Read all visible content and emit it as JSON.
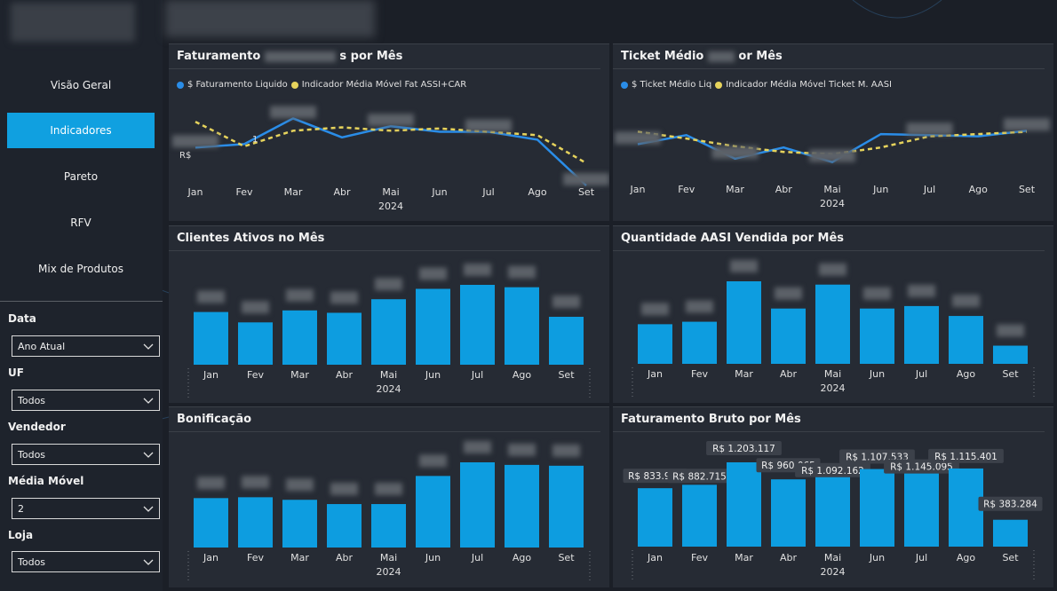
{
  "sidebar": {
    "nav": [
      {
        "label": "Visão Geral",
        "active": false
      },
      {
        "label": "Indicadores",
        "active": true
      },
      {
        "label": "Pareto",
        "active": false
      },
      {
        "label": "RFV",
        "active": false
      },
      {
        "label": "Mix de Produtos",
        "active": false
      }
    ],
    "filters": [
      {
        "label": "Data",
        "value": "Ano Atual"
      },
      {
        "label": "UF",
        "value": "Todos"
      },
      {
        "label": "Vendedor",
        "value": "Todos"
      },
      {
        "label": "Média Móvel",
        "value": "2"
      },
      {
        "label": "Loja",
        "value": "Todos"
      }
    ]
  },
  "colors": {
    "accent": "#10a0e0",
    "bar": "#0d9de0",
    "line_avg": "#e6d35c"
  },
  "months": [
    "Jan",
    "Fev",
    "Mar",
    "Abr",
    "Mai",
    "Jun",
    "Jul",
    "Ago",
    "Set"
  ],
  "year": "2024",
  "panels": {
    "fat_liq": {
      "title_start": "Faturamento",
      "title_end": "s por Mês",
      "legend": [
        "$ Faturamento Liquido",
        "Indicador Média Móvel Fat ASSI+CAR"
      ],
      "blur_label": "R$",
      "frac_label": "1"
    },
    "ticket": {
      "title_start": "Ticket Médio",
      "title_end": "or Mês",
      "legend": [
        "$ Ticket Médio Liq",
        "Indicador Média Móvel Ticket M. AASI"
      ]
    },
    "clientes": {
      "title": "Clientes Ativos no Mês"
    },
    "qtd_aasi": {
      "title": "Quantidade AASI Vendida por Mês"
    },
    "bonif": {
      "title": "Bonificação"
    },
    "fat_bruto": {
      "title": "Faturamento Bruto por Mês"
    }
  },
  "chart_data": [
    {
      "type": "line",
      "categories": [
        "Jan",
        "Fev",
        "Mar",
        "Abr",
        "Mai",
        "Jun",
        "Jul",
        "Ago",
        "Set"
      ],
      "series": [
        {
          "name": "$ Faturamento Liquido",
          "values": [
            0.57,
            0.6,
            0.83,
            0.66,
            0.76,
            0.71,
            0.71,
            0.64,
            0.23
          ]
        },
        {
          "name": "Indicador Média Móvel Fat ASSI+CAR",
          "values": [
            0.8,
            0.58,
            0.72,
            0.75,
            0.72,
            0.74,
            0.71,
            0.68,
            0.43
          ]
        }
      ]
    },
    {
      "type": "line",
      "categories": [
        "Jan",
        "Fev",
        "Mar",
        "Abr",
        "Mai",
        "Jun",
        "Jul",
        "Ago",
        "Set"
      ],
      "series": [
        {
          "name": "$ Ticket Médio Liq",
          "values": [
            0.6,
            0.68,
            0.47,
            0.57,
            0.44,
            0.69,
            0.68,
            0.67,
            0.72
          ]
        },
        {
          "name": "Indicador Média Móvel Ticket M. AASI",
          "values": [
            0.71,
            0.65,
            0.58,
            0.53,
            0.51,
            0.57,
            0.67,
            0.69,
            0.71
          ]
        }
      ]
    },
    {
      "type": "bar",
      "categories": [
        "Jan",
        "Fev",
        "Mar",
        "Abr",
        "Mai",
        "Jun",
        "Jul",
        "Ago",
        "Set"
      ],
      "values": [
        0.66,
        0.53,
        0.68,
        0.65,
        0.82,
        0.95,
        1.0,
        0.97,
        0.6
      ]
    },
    {
      "type": "bar",
      "categories": [
        "Jan",
        "Fev",
        "Mar",
        "Abr",
        "Mai",
        "Jun",
        "Jul",
        "Ago",
        "Set"
      ],
      "values": [
        0.48,
        0.51,
        1.0,
        0.67,
        0.96,
        0.67,
        0.7,
        0.58,
        0.22
      ]
    },
    {
      "type": "bar",
      "categories": [
        "Jan",
        "Fev",
        "Mar",
        "Abr",
        "Mai",
        "Jun",
        "Jul",
        "Ago",
        "Set"
      ],
      "values": [
        0.58,
        0.59,
        0.56,
        0.51,
        0.51,
        0.84,
        1.0,
        0.97,
        0.96
      ]
    },
    {
      "type": "bar",
      "title": "Faturamento Bruto por Mês",
      "categories": [
        "Jan",
        "Fev",
        "Mar",
        "Abr",
        "Mai",
        "Jun",
        "Jul",
        "Ago",
        "Set"
      ],
      "values": [
        833976,
        882715,
        1203117,
        960065,
        1092162,
        1107533,
        1145095,
        1115401,
        383284
      ],
      "labels": [
        "R$ 833.976",
        "R$ 882.715",
        "R$ 1.203.117",
        "R$ 960.065",
        "R$ 1.092.162",
        "R$ 1.107.533",
        "R$ 1.145.095",
        "R$ 1.115.401",
        "R$ 383.284"
      ]
    }
  ]
}
